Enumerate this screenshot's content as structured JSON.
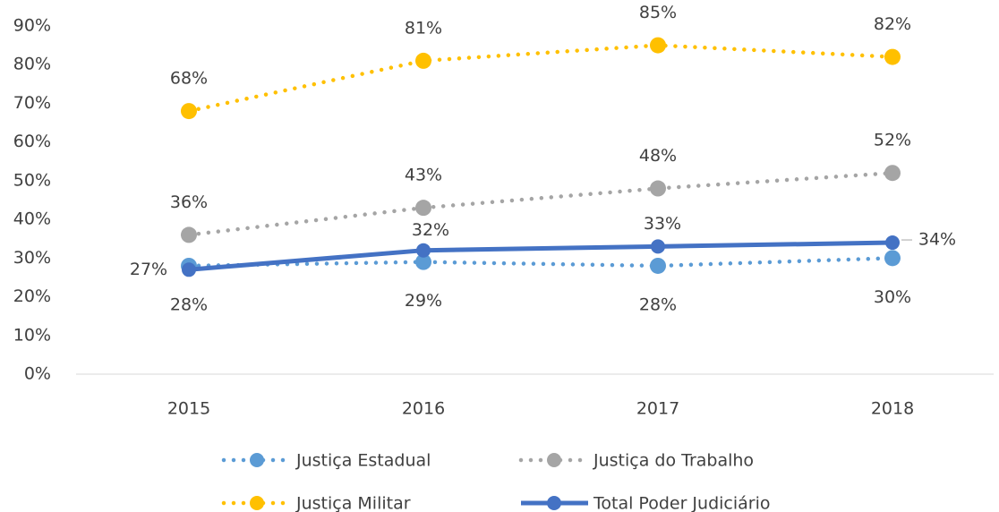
{
  "chart_data": {
    "type": "line",
    "categories": [
      "2015",
      "2016",
      "2017",
      "2018"
    ],
    "series": [
      {
        "name": "Justiça Estadual",
        "color": "#5b9bd5",
        "style": "dotted",
        "values": [
          28,
          29,
          28,
          30
        ],
        "value_labels": [
          "28%",
          "29%",
          "28%",
          "30%"
        ]
      },
      {
        "name": "Justiça do Trabalho",
        "color": "#a5a5a5",
        "style": "dotted",
        "values": [
          36,
          43,
          48,
          52
        ],
        "value_labels": [
          "36%",
          "43%",
          "48%",
          "52%"
        ]
      },
      {
        "name": "Justiça Militar",
        "color": "#ffc000",
        "style": "dotted",
        "values": [
          68,
          81,
          85,
          82
        ],
        "value_labels": [
          "68%",
          "81%",
          "85%",
          "82%"
        ]
      },
      {
        "name": "Total Poder Judiciário",
        "color": "#4472c4",
        "style": "solid",
        "values": [
          27,
          32,
          33,
          34
        ],
        "value_labels": [
          "27%",
          "32%",
          "33%",
          "34%"
        ]
      }
    ],
    "ylim": [
      0,
      90
    ],
    "yticks": [
      {
        "value": 0,
        "label": "0%"
      },
      {
        "value": 10,
        "label": "10%"
      },
      {
        "value": 20,
        "label": "20%"
      },
      {
        "value": 30,
        "label": "30%"
      },
      {
        "value": 40,
        "label": "40%"
      },
      {
        "value": 50,
        "label": "50%"
      },
      {
        "value": 60,
        "label": "60%"
      },
      {
        "value": 70,
        "label": "70%"
      },
      {
        "value": 80,
        "label": "80%"
      },
      {
        "value": 90,
        "label": "90%"
      }
    ],
    "grid": false,
    "legend": "bottom"
  }
}
